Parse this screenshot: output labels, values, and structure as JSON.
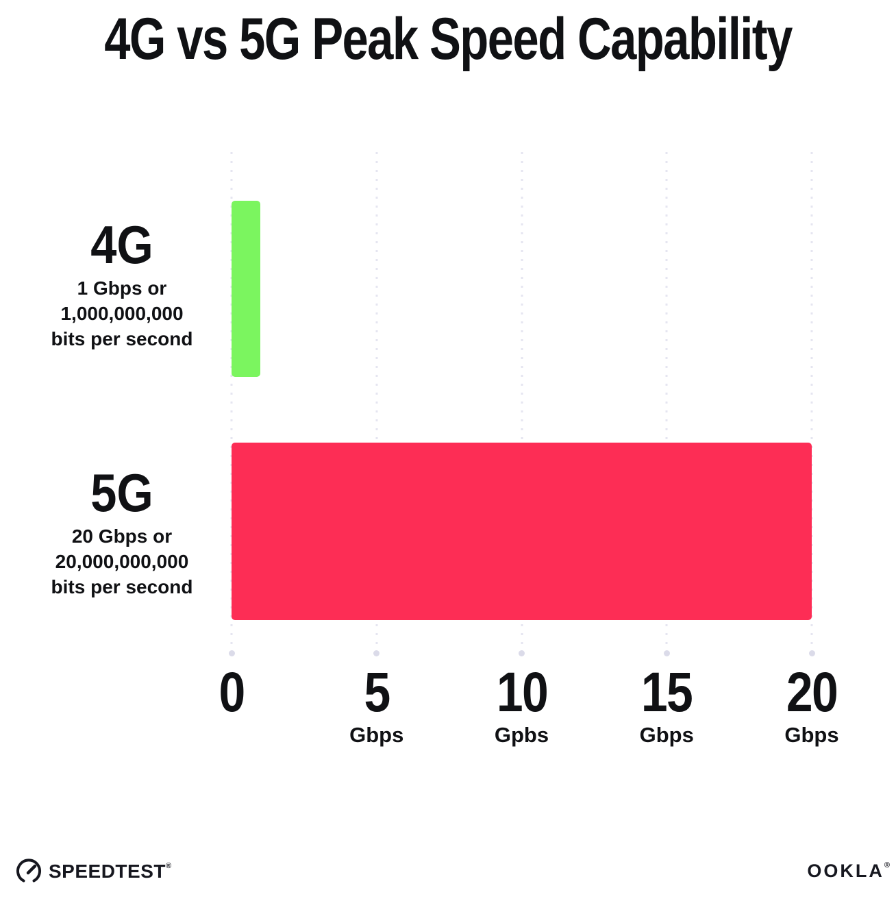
{
  "title": "4G vs 5G Peak Speed Capability",
  "chart_data": {
    "type": "bar",
    "orientation": "horizontal",
    "title": "4G vs 5G Peak Speed Capability",
    "categories": [
      "4G",
      "5G"
    ],
    "values": [
      1,
      20
    ],
    "value_unit": "Gbps",
    "xlim": [
      0,
      20
    ],
    "bar_colors": [
      "#7BF55F",
      "#FD2D55"
    ],
    "grid": "vertical dotted gridlines at 0, 5, 10, 15, 20 with terminal dots at bottom",
    "legend": "none",
    "row_labels": [
      {
        "heading": "4G",
        "sub_lines": [
          "1 Gbps or",
          "1,000,000,000",
          "bits per second"
        ]
      },
      {
        "heading": "5G",
        "sub_lines": [
          "20 Gbps or",
          "20,000,000,000",
          "bits per second"
        ]
      }
    ],
    "x_ticks": [
      {
        "value": "0",
        "unit": ""
      },
      {
        "value": "5",
        "unit": "Gbps"
      },
      {
        "value": "10",
        "unit": "Gpbs"
      },
      {
        "value": "15",
        "unit": "Gbps"
      },
      {
        "value": "20",
        "unit": "Gbps"
      }
    ]
  },
  "footer": {
    "speedtest": {
      "label": "SPEEDTEST",
      "trademark": "®"
    },
    "ookla": {
      "label": "OOKLA",
      "trademark": "®"
    }
  },
  "colors": {
    "background": "#FFFFFF",
    "text": "#101114",
    "bar_4g": "#7BF55F",
    "bar_5g": "#FD2D55",
    "gridline": "#E5E5F0"
  }
}
